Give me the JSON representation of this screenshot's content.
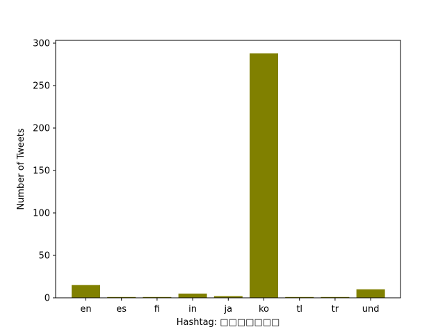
{
  "chart_data": {
    "type": "bar",
    "categories": [
      "en",
      "es",
      "fi",
      "in",
      "ja",
      "ko",
      "tl",
      "tr",
      "und"
    ],
    "values": [
      15,
      1,
      1,
      5,
      2,
      288,
      1,
      1,
      10
    ],
    "xlabel": "Hashtag: □□□□□□□",
    "ylabel": "Number of Tweets",
    "ylim": [
      0,
      300
    ],
    "yticks": [
      0,
      50,
      100,
      150,
      200,
      250,
      300
    ],
    "bar_color": "#808000",
    "grid": false,
    "legend": "none"
  }
}
